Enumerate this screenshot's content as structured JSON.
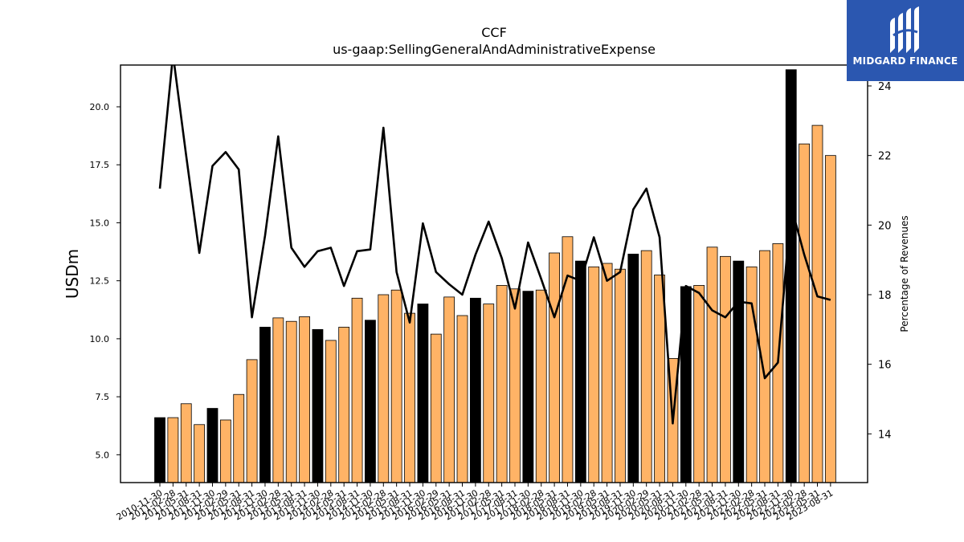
{
  "logo": {
    "text": "MIDGARD FINANCE",
    "color": "#2b57b0"
  },
  "chart_data": {
    "type": "bar",
    "title": "CCF",
    "subtitle": "us-gaap:SellingGeneralAndAdministrativeExpense",
    "ylabel": "USDm",
    "y2label": "Percentage of Revenues",
    "ylim": [
      3.8,
      21.8
    ],
    "y2lim": [
      12.6,
      24.6
    ],
    "yticks": [
      "5.0",
      "7.5",
      "10.0",
      "12.5",
      "15.0",
      "17.5",
      "20.0"
    ],
    "y2ticks": [
      "14",
      "16",
      "18",
      "20",
      "22",
      "24"
    ],
    "categories": [
      "2010-11-30",
      "2011-02-28",
      "2011-05-31",
      "2011-08-31",
      "2011-11-30",
      "2012-02-29",
      "2012-05-31",
      "2012-08-31",
      "2012-11-30",
      "2013-02-28",
      "2013-05-31",
      "2013-08-31",
      "2013-11-30",
      "2014-02-28",
      "2014-05-31",
      "2014-08-31",
      "2014-11-30",
      "2015-02-28",
      "2015-05-31",
      "2015-08-31",
      "2015-11-30",
      "2016-02-29",
      "2016-05-31",
      "2016-08-31",
      "2016-11-30",
      "2017-02-28",
      "2017-05-31",
      "2017-08-31",
      "2017-11-30",
      "2018-02-28",
      "2018-05-31",
      "2018-08-31",
      "2018-11-30",
      "2019-02-28",
      "2019-05-31",
      "2019-08-31",
      "2019-11-30",
      "2020-02-29",
      "2020-05-31",
      "2020-08-31",
      "2020-11-30",
      "2021-02-28",
      "2021-05-31",
      "2021-08-31",
      "2021-11-30",
      "2022-02-28",
      "2022-05-31",
      "2022-08-31",
      "2022-11-30",
      "2023-02-28",
      "2023-05-31",
      "2023-08-31"
    ],
    "series": [
      {
        "type": "bar",
        "values": [
          6.6,
          6.6,
          7.2,
          6.3,
          7.0,
          6.5,
          7.6,
          9.1,
          10.5,
          10.9,
          10.75,
          10.95,
          10.4,
          9.93,
          10.5,
          11.75,
          10.8,
          11.9,
          12.1,
          11.1,
          11.5,
          10.2,
          11.8,
          11.0,
          11.75,
          11.5,
          12.3,
          12.15,
          12.05,
          12.1,
          13.7,
          14.4,
          13.35,
          13.1,
          13.25,
          13.0,
          13.65,
          13.8,
          12.75,
          9.15,
          12.25,
          12.3,
          13.95,
          13.55,
          13.35,
          13.1,
          13.8,
          14.1,
          21.6,
          18.4,
          19.2,
          17.9
        ],
        "colors": [
          "#000000",
          "#ffb366"
        ],
        "highlight_indices": [
          0,
          4,
          8,
          12,
          16,
          20,
          24,
          28,
          32,
          36,
          40,
          44,
          48
        ]
      },
      {
        "type": "line",
        "axis": "right",
        "color": "#000000",
        "values": [
          21.05,
          24.9,
          22.0,
          19.2,
          21.7,
          22.1,
          21.6,
          17.35,
          19.7,
          22.55,
          19.35,
          18.8,
          19.25,
          19.35,
          18.25,
          19.25,
          19.3,
          22.8,
          18.65,
          17.2,
          20.05,
          18.65,
          18.3,
          18.0,
          19.15,
          20.1,
          19.05,
          17.6,
          19.5,
          18.45,
          17.35,
          18.55,
          18.4,
          19.65,
          18.4,
          18.65,
          20.45,
          21.05,
          19.65,
          14.3,
          18.25,
          18.05,
          17.55,
          17.35,
          17.8,
          17.75,
          15.6,
          16.05,
          20.55,
          19.15,
          17.95,
          17.85
        ]
      }
    ]
  }
}
